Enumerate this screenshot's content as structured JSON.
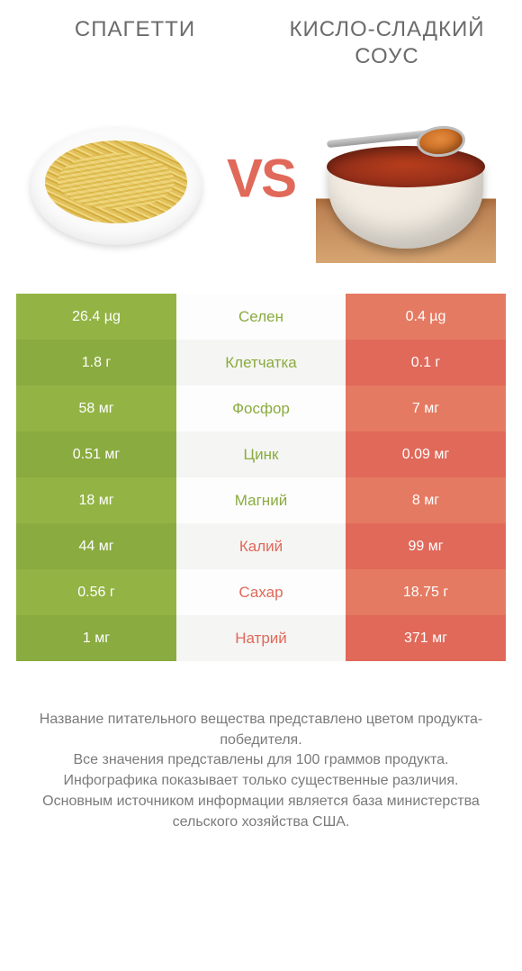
{
  "titles": {
    "left": "СПАГЕТТИ",
    "right": "КИСЛО-СЛАДКИЙ СОУС"
  },
  "vs_label": "VS",
  "colors": {
    "green_light": "#93b444",
    "green_dark": "#8aab3f",
    "orange_light": "#e57a62",
    "orange_dark": "#e0695a",
    "text_gray": "#6b6b6b",
    "background": "#ffffff"
  },
  "comparison": {
    "type": "infographic-table",
    "per_amount": "100 g",
    "rows": [
      {
        "nutrient": "Селен",
        "left": "26.4 µg",
        "right": "0.4 µg",
        "winner": "left"
      },
      {
        "nutrient": "Клетчатка",
        "left": "1.8 г",
        "right": "0.1 г",
        "winner": "left"
      },
      {
        "nutrient": "Фосфор",
        "left": "58 мг",
        "right": "7 мг",
        "winner": "left"
      },
      {
        "nutrient": "Цинк",
        "left": "0.51 мг",
        "right": "0.09 мг",
        "winner": "left"
      },
      {
        "nutrient": "Магний",
        "left": "18 мг",
        "right": "8 мг",
        "winner": "left"
      },
      {
        "nutrient": "Калий",
        "left": "44 мг",
        "right": "99 мг",
        "winner": "right"
      },
      {
        "nutrient": "Сахар",
        "left": "0.56 г",
        "right": "18.75 г",
        "winner": "right"
      },
      {
        "nutrient": "Натрий",
        "left": "1 мг",
        "right": "371 мг",
        "winner": "right"
      }
    ]
  },
  "footer_lines": [
    "Название питательного вещества представлено цветом продукта-победителя.",
    "Все значения представлены для 100 граммов продукта.",
    "Инфографика показывает только существенные различия.",
    "Основным источником информации является база министерства сельского хозяйства США."
  ]
}
